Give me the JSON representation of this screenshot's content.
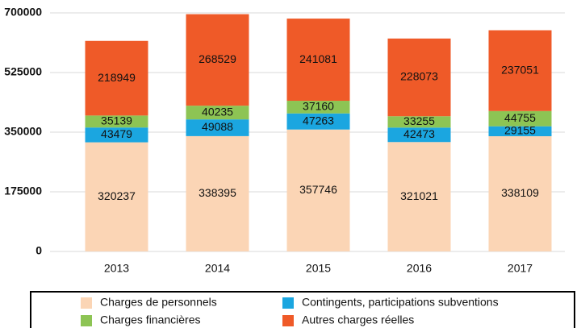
{
  "chart_data": {
    "type": "stacked_bar",
    "categories": [
      "2013",
      "2014",
      "2015",
      "2016",
      "2017"
    ],
    "series": [
      {
        "name": "Charges de personnels",
        "color": "#fbd5b5",
        "values": [
          320237,
          338395,
          357746,
          321021,
          338109
        ]
      },
      {
        "name": "Contingents, participations subventions",
        "color": "#1ba6e0",
        "values": [
          43479,
          49088,
          47263,
          42473,
          29155
        ]
      },
      {
        "name": "Charges financières",
        "color": "#8dc454",
        "values": [
          35139,
          40235,
          37160,
          33255,
          44755
        ]
      },
      {
        "name": "Autres charges réelles",
        "color": "#ef5a28",
        "values": [
          218949,
          268529,
          241081,
          228073,
          237051
        ]
      }
    ],
    "ylim": [
      0,
      700000
    ],
    "yticks": [
      0,
      175000,
      350000,
      525000,
      700000
    ],
    "grid": true
  }
}
